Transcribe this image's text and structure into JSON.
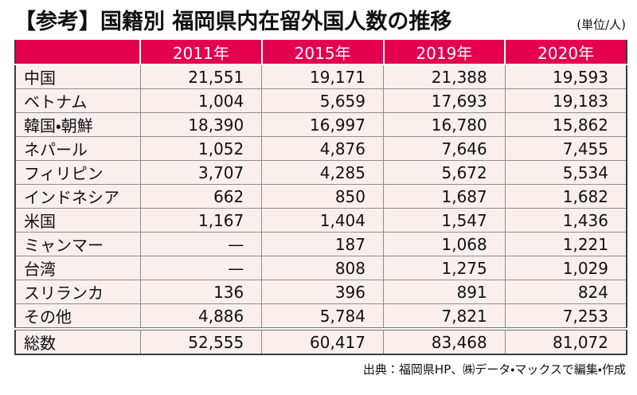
{
  "header": {
    "title": "【参考】国籍別 福岡県内在留外国人数の推移",
    "unit_note": "(単位/人)"
  },
  "colors": {
    "header_bg": "#e4004f",
    "header_text": "#ffffff",
    "cell_bg": "#f9efec"
  },
  "table": {
    "columns": [
      "2011年",
      "2015年",
      "2019年",
      "2020年"
    ],
    "rows": [
      {
        "label": "中国",
        "values": [
          "21,551",
          "19,171",
          "21,388",
          "19,593"
        ]
      },
      {
        "label": "ベトナム",
        "values": [
          "1,004",
          "5,659",
          "17,693",
          "19,183"
        ]
      },
      {
        "label": "韓国・朝鮮",
        "values": [
          "18,390",
          "16,997",
          "16,780",
          "15,862"
        ]
      },
      {
        "label": "ネパール",
        "values": [
          "1,052",
          "4,876",
          "7,646",
          "7,455"
        ]
      },
      {
        "label": "フィリピン",
        "values": [
          "3,707",
          "4,285",
          "5,672",
          "5,534"
        ]
      },
      {
        "label": "インドネシア",
        "values": [
          "662",
          "850",
          "1,687",
          "1,682"
        ]
      },
      {
        "label": "米国",
        "values": [
          "1,167",
          "1,404",
          "1,547",
          "1,436"
        ]
      },
      {
        "label": "ミャンマー",
        "values": [
          "—",
          "187",
          "1,068",
          "1,221"
        ]
      },
      {
        "label": "台湾",
        "values": [
          "—",
          "808",
          "1,275",
          "1,029"
        ]
      },
      {
        "label": "スリランカ",
        "values": [
          "136",
          "396",
          "891",
          "824"
        ]
      },
      {
        "label": "その他",
        "values": [
          "4,886",
          "5,784",
          "7,821",
          "7,253"
        ]
      },
      {
        "label": "総数",
        "values": [
          "52,555",
          "60,417",
          "83,468",
          "81,072"
        ],
        "total": true
      }
    ]
  },
  "footer": {
    "source": "出典：福岡県HP、㈱データ・マックスで編集・作成"
  }
}
